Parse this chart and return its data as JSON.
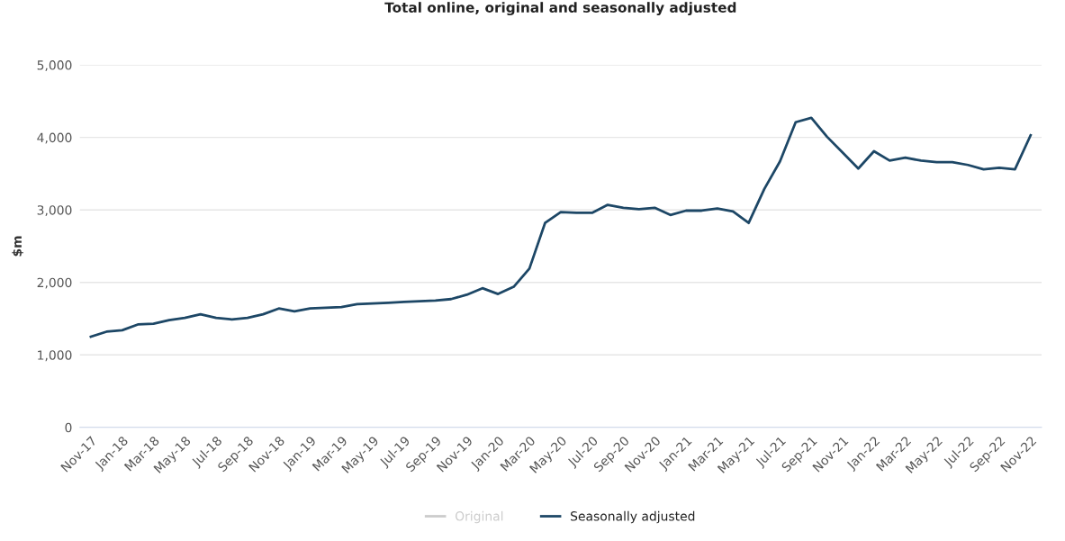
{
  "chart_data": {
    "type": "line",
    "title": "Total online, original and seasonally adjusted",
    "ylabel": "$m",
    "categories": [
      "Nov-17",
      null,
      "Jan-18",
      null,
      "Mar-18",
      null,
      "May-18",
      null,
      "Jul-18",
      null,
      "Sep-18",
      null,
      "Nov-18",
      null,
      "Jan-19",
      null,
      "Mar-19",
      null,
      "May-19",
      null,
      "Jul-19",
      null,
      "Sep-19",
      null,
      "Nov-19",
      null,
      "Jan-20",
      null,
      "Mar-20",
      null,
      "May-20",
      null,
      "Jul-20",
      null,
      "Sep-20",
      null,
      "Nov-20",
      null,
      "Jan-21",
      null,
      "Mar-21",
      null,
      "May-21",
      null,
      "Jul-21",
      null,
      "Sep-21",
      null,
      "Nov-21",
      null,
      "Jan-22",
      null,
      "Mar-22",
      null,
      "May-22",
      null,
      "Jul-22",
      null,
      "Sep-22",
      null,
      "Nov-22"
    ],
    "series": [
      {
        "name": "Original",
        "color": "#cccccc",
        "values": [
          null,
          null,
          null,
          null,
          null,
          null,
          null,
          null,
          null,
          null,
          null,
          null,
          null,
          null,
          null,
          null,
          null,
          null,
          null,
          null,
          null,
          null,
          null,
          null,
          null,
          null,
          null,
          null,
          null,
          null,
          null,
          null,
          null,
          null,
          null,
          null,
          null,
          null,
          null,
          null,
          null,
          null,
          null,
          null,
          null,
          null,
          null,
          null,
          null,
          null,
          null,
          null,
          null,
          null,
          null,
          null,
          null,
          null,
          null,
          null,
          null
        ]
      },
      {
        "name": "Seasonally adjusted",
        "color": "#1d4766",
        "values": [
          1250,
          1320,
          1340,
          1420,
          1430,
          1480,
          1510,
          1560,
          1510,
          1490,
          1510,
          1560,
          1640,
          1600,
          1640,
          1650,
          1660,
          1700,
          1710,
          1720,
          1730,
          1740,
          1750,
          1770,
          1830,
          1920,
          1840,
          1940,
          2190,
          2820,
          2970,
          2960,
          2960,
          3070,
          3030,
          3010,
          3030,
          2930,
          2990,
          2990,
          3020,
          2980,
          2820,
          3290,
          3670,
          4210,
          4270,
          4010,
          3790,
          3570,
          3810,
          3680,
          3720,
          3680,
          3660,
          3660,
          3620,
          3560,
          3580,
          3560,
          4030
        ]
      }
    ],
    "ylim": [
      0,
      5000
    ],
    "yticks": [
      {
        "value": 0,
        "label": "0"
      },
      {
        "value": 1000,
        "label": "1,000"
      },
      {
        "value": 2000,
        "label": "2,000"
      },
      {
        "value": 3000,
        "label": "3,000"
      },
      {
        "value": 4000,
        "label": "4,000"
      },
      {
        "value": 5000,
        "label": "5,000"
      }
    ],
    "grid": "y",
    "legend": "bottom",
    "marker": "none",
    "line_style": "solid"
  }
}
